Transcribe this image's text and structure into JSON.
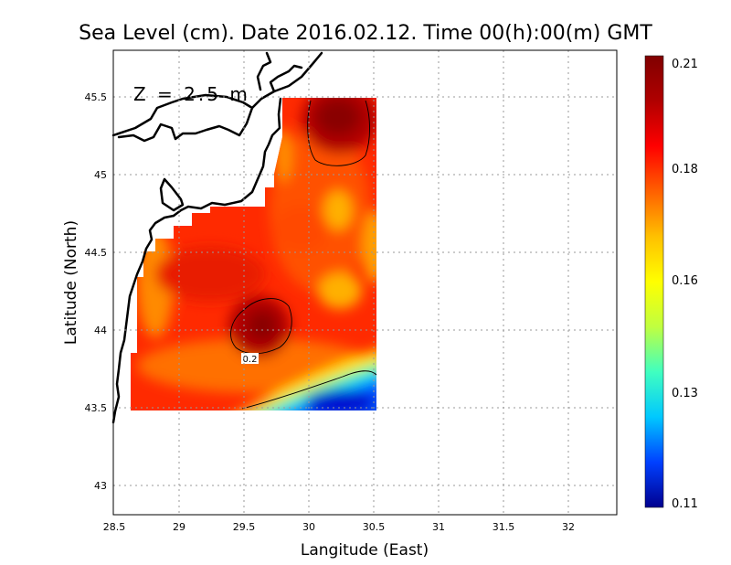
{
  "chart_data": {
    "type": "heatmap",
    "title": "Sea Level (cm). Date 2016.02.12. Time 00(h):00(m) GMT",
    "xlabel": "Langitude (East)",
    "ylabel": "Latitude (North)",
    "annotation": "Z = 2.5 m",
    "xlim": [
      28.5,
      32.4
    ],
    "ylim": [
      42.78,
      45.81
    ],
    "x_ticks": [
      "28.5",
      "29",
      "29.5",
      "30",
      "30.5",
      "31",
      "31.5",
      "32"
    ],
    "y_ticks": [
      "43",
      "43.5",
      "44",
      "44.5",
      "45",
      "45.5"
    ],
    "grid": true,
    "colorbar": {
      "min": 0.11,
      "max": 0.21,
      "tick_labels": [
        "0.21",
        "0.18",
        "0.16",
        "0.13",
        "0.11"
      ],
      "colors": [
        "#00008f",
        "#0040ff",
        "#00c8ff",
        "#40ffc0",
        "#c0ff40",
        "#ffff00",
        "#ffc000",
        "#ff6000",
        "#ff0000",
        "#b00000",
        "#800000"
      ]
    },
    "data_extent": {
      "lon": [
        28.63,
        30.55
      ],
      "lat": [
        43.48,
        45.5
      ]
    },
    "contour_labels": [
      "0.2"
    ],
    "maxima": [
      {
        "lon": 30.2,
        "lat": 45.35,
        "value": 0.21
      },
      {
        "lon": 29.65,
        "lat": 44.0,
        "value": 0.21
      }
    ],
    "minimum": {
      "lon": 30.3,
      "lat": 43.55,
      "value": 0.11
    }
  }
}
